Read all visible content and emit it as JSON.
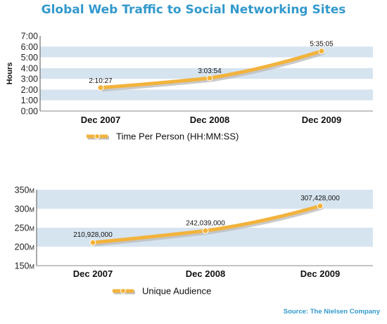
{
  "page_title": "Global Web Traffic to Social Networking Sites",
  "source": "Source: The Nielsen Company",
  "colors": {
    "band": "#d6e4f0",
    "line": "#f2b33d",
    "shadow": "#bdbdbd",
    "title": "#3399cc"
  },
  "chart_data": [
    {
      "type": "line",
      "ylabel": "Hours",
      "ylim": [
        0,
        7
      ],
      "grid": "alternating horizontal bands",
      "categories": [
        "Dec 2007",
        "Dec 2008",
        "Dec 2009"
      ],
      "yticks": [
        "0:00",
        "1:00",
        "2:00",
        "3:00",
        "4:00",
        "5:00",
        "6:00",
        "7:00"
      ],
      "series": [
        {
          "name": "Time Per Person (HH:MM:SS)",
          "values": [
            2.174,
            3.065,
            5.585
          ],
          "labels": [
            "2:10:27",
            "3:03:54",
            "5:35:05"
          ]
        }
      ],
      "legend": "bottom-center"
    },
    {
      "type": "line",
      "ylabel": "",
      "ylim": [
        150,
        350
      ],
      "grid": "alternating horizontal bands",
      "categories": [
        "Dec 2007",
        "Dec 2008",
        "Dec 2009"
      ],
      "yticks": [
        "150M",
        "200M",
        "250M",
        "300M",
        "350M"
      ],
      "series": [
        {
          "name": "Unique Audience",
          "values": [
            210.928,
            242.039,
            307.428
          ],
          "labels": [
            "210,928,000",
            "242,039,000",
            "307,428,000"
          ]
        }
      ],
      "legend": "bottom-center"
    }
  ]
}
